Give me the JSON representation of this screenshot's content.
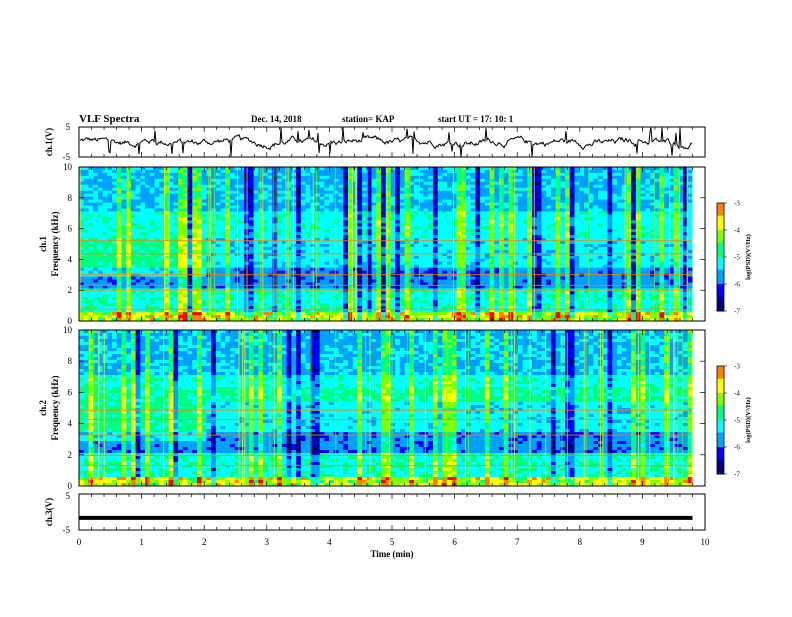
{
  "header": {
    "title": "VLF Spectra",
    "date": "Dec. 14, 2018",
    "station": "station= KAP",
    "start_time": "start  UT =   17: 10: 1"
  },
  "colors": {
    "line": "#000000",
    "spectrogram_colormap": [
      "#000080",
      "#0000ff",
      "#00a0ff",
      "#00ffff",
      "#00ff80",
      "#80ff00",
      "#ffff00",
      "#ff8000",
      "#ff0000",
      "#ffffff"
    ]
  },
  "chart_data": [
    {
      "type": "line",
      "panel": "ch1-waveform",
      "ylabel": "ch.1(V)",
      "ylim": [
        -5,
        5
      ],
      "yticks": [
        "5",
        "-5"
      ],
      "xlim": [
        0,
        10
      ],
      "description_of_trace": "noisy fluctuating signal roughly between -2 and 2 V with frequent spikes reaching the limits",
      "x_end": 9.8
    },
    {
      "type": "heatmap",
      "panel": "ch1-spectrogram",
      "ylabel": "ch.1",
      "ylabel2": "Frequency  (kHz)",
      "ylim": [
        0,
        10
      ],
      "yticks": [
        "0",
        "2",
        "4",
        "6",
        "8",
        "10"
      ],
      "xlim": [
        0,
        10
      ],
      "x_end": 9.8,
      "colorbar": {
        "label": "log(PSD)(V²/Hz)",
        "range": [
          -7,
          -3
        ],
        "ticks": [
          "-3",
          "-4",
          "-5",
          "-6",
          "-7"
        ]
      }
    },
    {
      "type": "heatmap",
      "panel": "ch2-spectrogram",
      "ylabel": "ch.2",
      "ylabel2": "Frequency  (kHz)",
      "ylim": [
        0,
        10
      ],
      "yticks": [
        "0",
        "2",
        "4",
        "6",
        "8",
        "10"
      ],
      "xlim": [
        0,
        10
      ],
      "x_end": 9.8,
      "colorbar": {
        "label": "log(PSD)(V²/Hz)",
        "range": [
          -7,
          -3
        ],
        "ticks": [
          "-3",
          "-4",
          "-5",
          "-6",
          "-7"
        ]
      }
    },
    {
      "type": "line",
      "panel": "ch3-waveform",
      "ylabel": "ch.3(V)",
      "ylim": [
        -5,
        5
      ],
      "yticks": [
        "5",
        "-5"
      ],
      "xlim": [
        0,
        10
      ],
      "x_end": 9.8,
      "series": [
        {
          "x": [
            0,
            9.8
          ],
          "y": [
            -1.5,
            -1.5
          ]
        }
      ]
    }
  ],
  "xaxis": {
    "label": "Time  (min)",
    "ticks": [
      "0",
      "1",
      "2",
      "3",
      "4",
      "5",
      "6",
      "7",
      "8",
      "9",
      "10"
    ]
  }
}
